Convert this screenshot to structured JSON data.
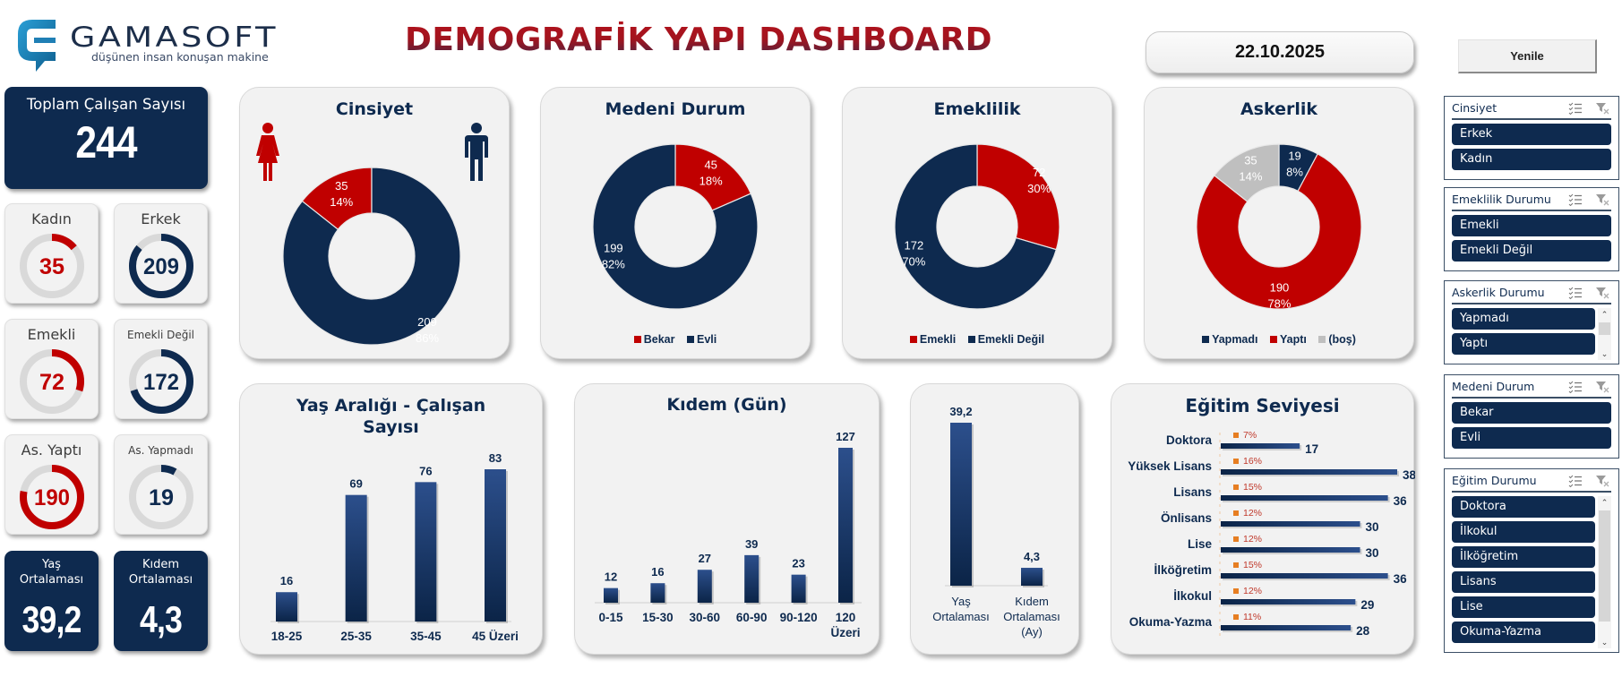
{
  "header": {
    "logo_name": "GAMASOFT",
    "logo_tagline": "düşünen insan konuşan makine",
    "title": "DEMOGRAFİK YAPI DASHBOARD",
    "date": "22.10.2025",
    "refresh_label": "Yenile"
  },
  "colors": {
    "navy": "#0e2a4f",
    "red": "#c00000",
    "gray": "#bfbfbf",
    "panel_bg": "#f2f2f2",
    "edu_pct": "#c0392b",
    "edu_marker": "#e67e22"
  },
  "kpi": {
    "total": {
      "label": "Toplam Çalışan Sayısı",
      "value": "244"
    },
    "gauges": [
      {
        "label": "Kadın",
        "value": "35",
        "ratio": 0.14,
        "color": "#c00000"
      },
      {
        "label": "Erkek",
        "value": "209",
        "ratio": 0.86,
        "color": "#0e2a4f"
      },
      {
        "label": "Emekli",
        "value": "72",
        "ratio": 0.3,
        "color": "#c00000"
      },
      {
        "label": "Emekli Değil",
        "value": "172",
        "ratio": 0.7,
        "color": "#0e2a4f"
      },
      {
        "label": "As. Yaptı",
        "value": "190",
        "ratio": 0.78,
        "color": "#c00000"
      },
      {
        "label": "As. Yapmadı",
        "value": "19",
        "ratio": 0.08,
        "color": "#0e2a4f"
      }
    ],
    "averages": [
      {
        "label_line1": "Yaş",
        "label_line2": "Ortalaması",
        "value": "39,2"
      },
      {
        "label_line1": "Kıdem",
        "label_line2": "Ortalaması",
        "value": "4,3"
      }
    ]
  },
  "icons": {
    "female": "female-person-icon",
    "male": "male-person-icon",
    "multi_select": "multi-select-icon",
    "clear_filter": "clear-filter-icon"
  },
  "chart_data": [
    {
      "type": "pie",
      "title": "Cinsiyet",
      "donut": true,
      "categories": [
        "Kadın",
        "Erkek"
      ],
      "values": [
        35,
        209
      ],
      "percents": [
        "14%",
        "86%"
      ],
      "colors": [
        "#c00000",
        "#0e2a4f"
      ],
      "legend": []
    },
    {
      "type": "pie",
      "title": "Medeni Durum",
      "donut": true,
      "categories": [
        "Bekar",
        "Evli"
      ],
      "values": [
        45,
        199
      ],
      "percents": [
        "18%",
        "82%"
      ],
      "colors": [
        "#c00000",
        "#0e2a4f"
      ],
      "legend": [
        "Bekar",
        "Evli"
      ],
      "legend_position": "bottom"
    },
    {
      "type": "pie",
      "title": "Emeklilik",
      "donut": true,
      "categories": [
        "Emekli",
        "Emekli Değil"
      ],
      "values": [
        72,
        172
      ],
      "percents": [
        "30%",
        "70%"
      ],
      "colors": [
        "#c00000",
        "#0e2a4f"
      ],
      "legend": [
        "Emekli",
        "Emekli Değil"
      ],
      "legend_position": "bottom"
    },
    {
      "type": "pie",
      "title": "Askerlik",
      "donut": true,
      "categories": [
        "Yapmadı",
        "Yaptı",
        "(boş)"
      ],
      "values": [
        19,
        190,
        35
      ],
      "percents": [
        "8%",
        "78%",
        "14%"
      ],
      "colors": [
        "#0e2a4f",
        "#c00000",
        "#bfbfbf"
      ],
      "legend": [
        "Yapmadı",
        "Yaptı",
        "(boş)"
      ],
      "legend_position": "bottom"
    },
    {
      "type": "bar",
      "title": "Yaş Aralığı - Çalışan Sayısı",
      "title_line1": "Yaş Aralığı - Çalışan",
      "title_line2": "Sayısı",
      "categories": [
        "18-25",
        "25-35",
        "35-45",
        "45 Üzeri"
      ],
      "values": [
        16,
        69,
        76,
        83
      ],
      "xlabel": "",
      "ylabel": "",
      "grid": false
    },
    {
      "type": "bar",
      "title": "Kıdem (Gün)",
      "categories": [
        "0-15",
        "15-30",
        "30-60",
        "60-90",
        "90-120",
        "120 Üzeri"
      ],
      "category_lines": [
        [
          "0-15"
        ],
        [
          "15-30"
        ],
        [
          "30-60"
        ],
        [
          "60-90"
        ],
        [
          "90-120"
        ],
        [
          "120",
          "Üzeri"
        ]
      ],
      "values": [
        12,
        16,
        27,
        39,
        23,
        127
      ],
      "xlabel": "",
      "ylabel": "",
      "grid": false
    },
    {
      "type": "bar",
      "title": "",
      "categories": [
        "Yaş Ortalaması",
        "Kıdem Ortalaması (Ay)"
      ],
      "category_lines": [
        [
          "Yaş",
          "Ortalaması"
        ],
        [
          "Kıdem",
          "Ortalaması",
          "(Ay)"
        ]
      ],
      "values": [
        39.2,
        4.3
      ],
      "value_labels": [
        "39,2",
        "4,3"
      ],
      "grid": false
    },
    {
      "type": "bar",
      "orientation": "horizontal",
      "title": "Eğitim Seviyesi",
      "categories": [
        "Doktora",
        "Yüksek Lisans",
        "Lisans",
        "Önlisans",
        "Lise",
        "İlköğretim",
        "İlkokul",
        "Okuma-Yazma"
      ],
      "values": [
        17,
        38,
        36,
        30,
        30,
        36,
        29,
        28
      ],
      "percents": [
        "7%",
        "16%",
        "15%",
        "12%",
        "12%",
        "15%",
        "12%",
        "11%"
      ],
      "grid": false
    }
  ],
  "slicers": [
    {
      "title": "Cinsiyet",
      "items": [
        "Erkek",
        "Kadın"
      ],
      "scroll": false
    },
    {
      "title": "Emeklilik Durumu",
      "items": [
        "Emekli",
        "Emekli Değil"
      ],
      "scroll": false
    },
    {
      "title": "Askerlik Durumu",
      "items": [
        "Yapmadı",
        "Yaptı"
      ],
      "scroll": true
    },
    {
      "title": "Medeni Durum",
      "items": [
        "Bekar",
        "Evli"
      ],
      "scroll": false
    },
    {
      "title": "Eğitim Durumu",
      "items": [
        "Doktora",
        "İlkokul",
        "İlköğretim",
        "Lisans",
        "Lise",
        "Okuma-Yazma"
      ],
      "scroll": true
    }
  ]
}
